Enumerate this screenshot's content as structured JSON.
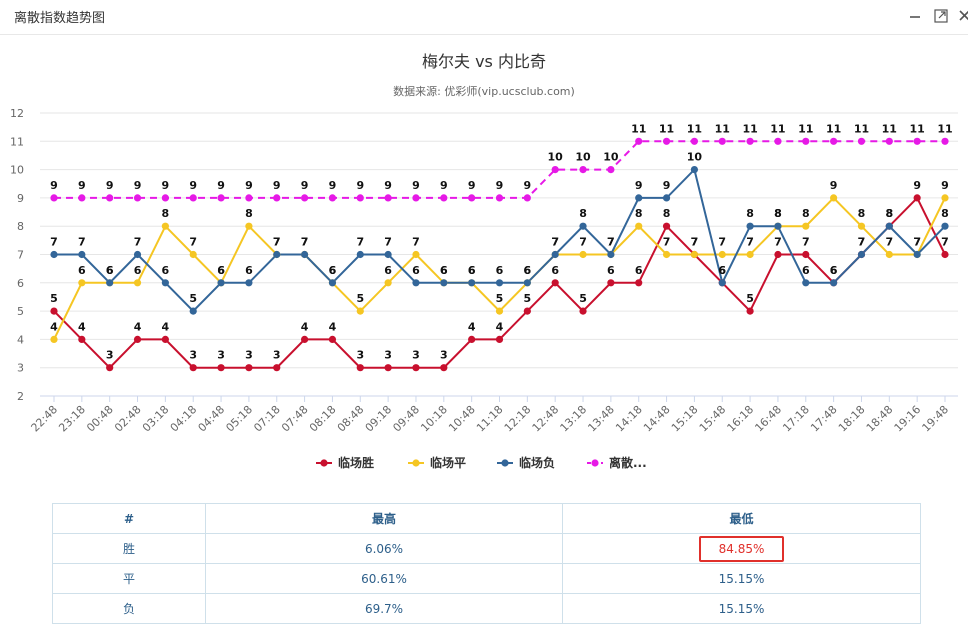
{
  "window": {
    "title": "离散指数趋势图",
    "icons": [
      "minimize-icon",
      "maximize-icon",
      "close-icon"
    ]
  },
  "chart_data": {
    "type": "line",
    "title": "梅尔夫 vs 内比奇",
    "subtitle": "数据来源: 优彩师(vip.ucsclub.com)",
    "xlabel": "",
    "ylabel": "",
    "ylim": [
      2,
      12
    ],
    "yticks": [
      2,
      3,
      4,
      5,
      6,
      7,
      8,
      9,
      10,
      11,
      12
    ],
    "grid": true,
    "legend_position": "bottom",
    "categories": [
      "22:48",
      "23:18",
      "00:48",
      "02:48",
      "03:18",
      "04:18",
      "04:48",
      "05:18",
      "07:18",
      "07:48",
      "08:18",
      "08:48",
      "09:18",
      "09:48",
      "10:18",
      "10:48",
      "11:18",
      "12:18",
      "12:48",
      "13:18",
      "13:48",
      "14:18",
      "14:48",
      "15:18",
      "15:48",
      "16:18",
      "16:48",
      "17:18",
      "17:48",
      "18:18",
      "18:48",
      "19:16",
      "19:48"
    ],
    "series": [
      {
        "name": "临场胜",
        "color": "#c8102e",
        "dashed": false,
        "values": [
          5,
          4,
          3,
          4,
          4,
          3,
          3,
          3,
          3,
          4,
          4,
          3,
          3,
          3,
          3,
          4,
          4,
          5,
          6,
          5,
          6,
          6,
          8,
          7,
          6,
          5,
          7,
          7,
          6,
          7,
          8,
          9,
          7
        ]
      },
      {
        "name": "临场平",
        "color": "#f5c623",
        "dashed": false,
        "values": [
          4,
          6,
          6,
          6,
          8,
          7,
          6,
          8,
          7,
          7,
          6,
          5,
          6,
          7,
          6,
          6,
          5,
          6,
          7,
          7,
          7,
          8,
          7,
          7,
          7,
          7,
          8,
          8,
          9,
          8,
          7,
          7,
          9
        ]
      },
      {
        "name": "临场负",
        "color": "#336699",
        "dashed": false,
        "values": [
          7,
          7,
          6,
          7,
          6,
          5,
          6,
          6,
          7,
          7,
          6,
          7,
          7,
          6,
          6,
          6,
          6,
          6,
          7,
          8,
          7,
          9,
          9,
          10,
          6,
          8,
          8,
          6,
          6,
          7,
          8,
          7,
          8
        ]
      },
      {
        "name": "离散...",
        "color": "#e619e6",
        "dashed": true,
        "values": [
          9,
          9,
          9,
          9,
          9,
          9,
          9,
          9,
          9,
          9,
          9,
          9,
          9,
          9,
          9,
          9,
          9,
          9,
          10,
          10,
          10,
          11,
          11,
          11,
          11,
          11,
          11,
          11,
          11,
          11,
          11,
          11,
          11
        ]
      }
    ]
  },
  "table": {
    "headers": [
      "#",
      "最高",
      "最低"
    ],
    "rows": [
      {
        "label": "胜",
        "high": "6.06%",
        "low": "84.85%",
        "low_highlighted": true
      },
      {
        "label": "平",
        "high": "60.61%",
        "low": "15.15%"
      },
      {
        "label": "负",
        "high": "69.7%",
        "low": "15.15%"
      }
    ]
  }
}
